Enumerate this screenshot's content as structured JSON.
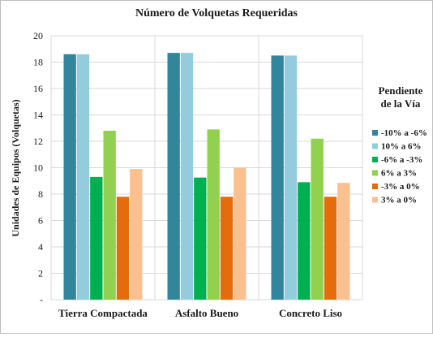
{
  "chart_data": {
    "type": "bar",
    "title": "Número de Volquetas Requeridas",
    "ylabel": "Unidades de Equipos (Volquetas)",
    "xlabel": "",
    "ylim": [
      0,
      20
    ],
    "yticks": [
      "-",
      "2",
      "4",
      "6",
      "8",
      "10",
      "12",
      "14",
      "16",
      "18",
      "20"
    ],
    "grid": true,
    "legend_title": [
      "Pendiente",
      "de la Vía"
    ],
    "legend_position": "right",
    "categories": [
      "Tierra Compactada",
      "Asfalto Bueno",
      "Concreto Liso"
    ],
    "series": [
      {
        "name": "-10% a -6%",
        "color": "#31859c",
        "values": [
          18.6,
          18.7,
          18.5
        ]
      },
      {
        "name": "10% a 6%",
        "color": "#93cddd",
        "values": [
          18.6,
          18.7,
          18.5
        ]
      },
      {
        "name": "-6% a -3%",
        "color": "#00b050",
        "values": [
          9.3,
          9.25,
          8.9
        ]
      },
      {
        "name": "6% a 3%",
        "color": "#92d050",
        "values": [
          12.8,
          12.9,
          12.2
        ]
      },
      {
        "name": "-3% a 0%",
        "color": "#e46c0a",
        "values": [
          7.8,
          7.8,
          7.8
        ]
      },
      {
        "name": "3% a 0%",
        "color": "#fac090",
        "values": [
          9.9,
          10.0,
          8.85
        ]
      }
    ]
  }
}
